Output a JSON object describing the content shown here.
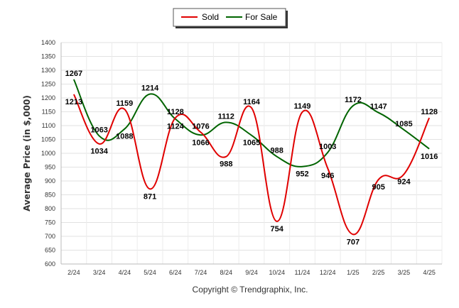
{
  "chart_data": {
    "type": "line",
    "categories": [
      "2/24",
      "3/24",
      "4/24",
      "5/24",
      "6/24",
      "7/24",
      "8/24",
      "9/24",
      "10/24",
      "11/24",
      "12/24",
      "1/25",
      "2/25",
      "3/25",
      "4/25"
    ],
    "series": [
      {
        "name": "Sold",
        "color": "#e00000",
        "values": [
          1213,
          1034,
          1159,
          871,
          1128,
          1076,
          988,
          1164,
          754,
          1149,
          946,
          707,
          905,
          924,
          1128
        ]
      },
      {
        "name": "For Sale",
        "color": "#006400",
        "values": [
          1267,
          1063,
          1088,
          1214,
          1124,
          1066,
          1112,
          1065,
          988,
          952,
          1003,
          1172,
          1147,
          1085,
          1016
        ]
      }
    ],
    "ylabel": "Average Price (in $,000)",
    "xlabel": "",
    "ylim": [
      600,
      1400
    ],
    "yticks": [
      600,
      650,
      700,
      750,
      800,
      850,
      900,
      950,
      1000,
      1050,
      1100,
      1150,
      1200,
      1250,
      1300,
      1350,
      1400
    ],
    "grid": true,
    "legend_position": "top-center"
  },
  "footer": {
    "copyright": "Copyright © Trendgraphix, Inc."
  }
}
